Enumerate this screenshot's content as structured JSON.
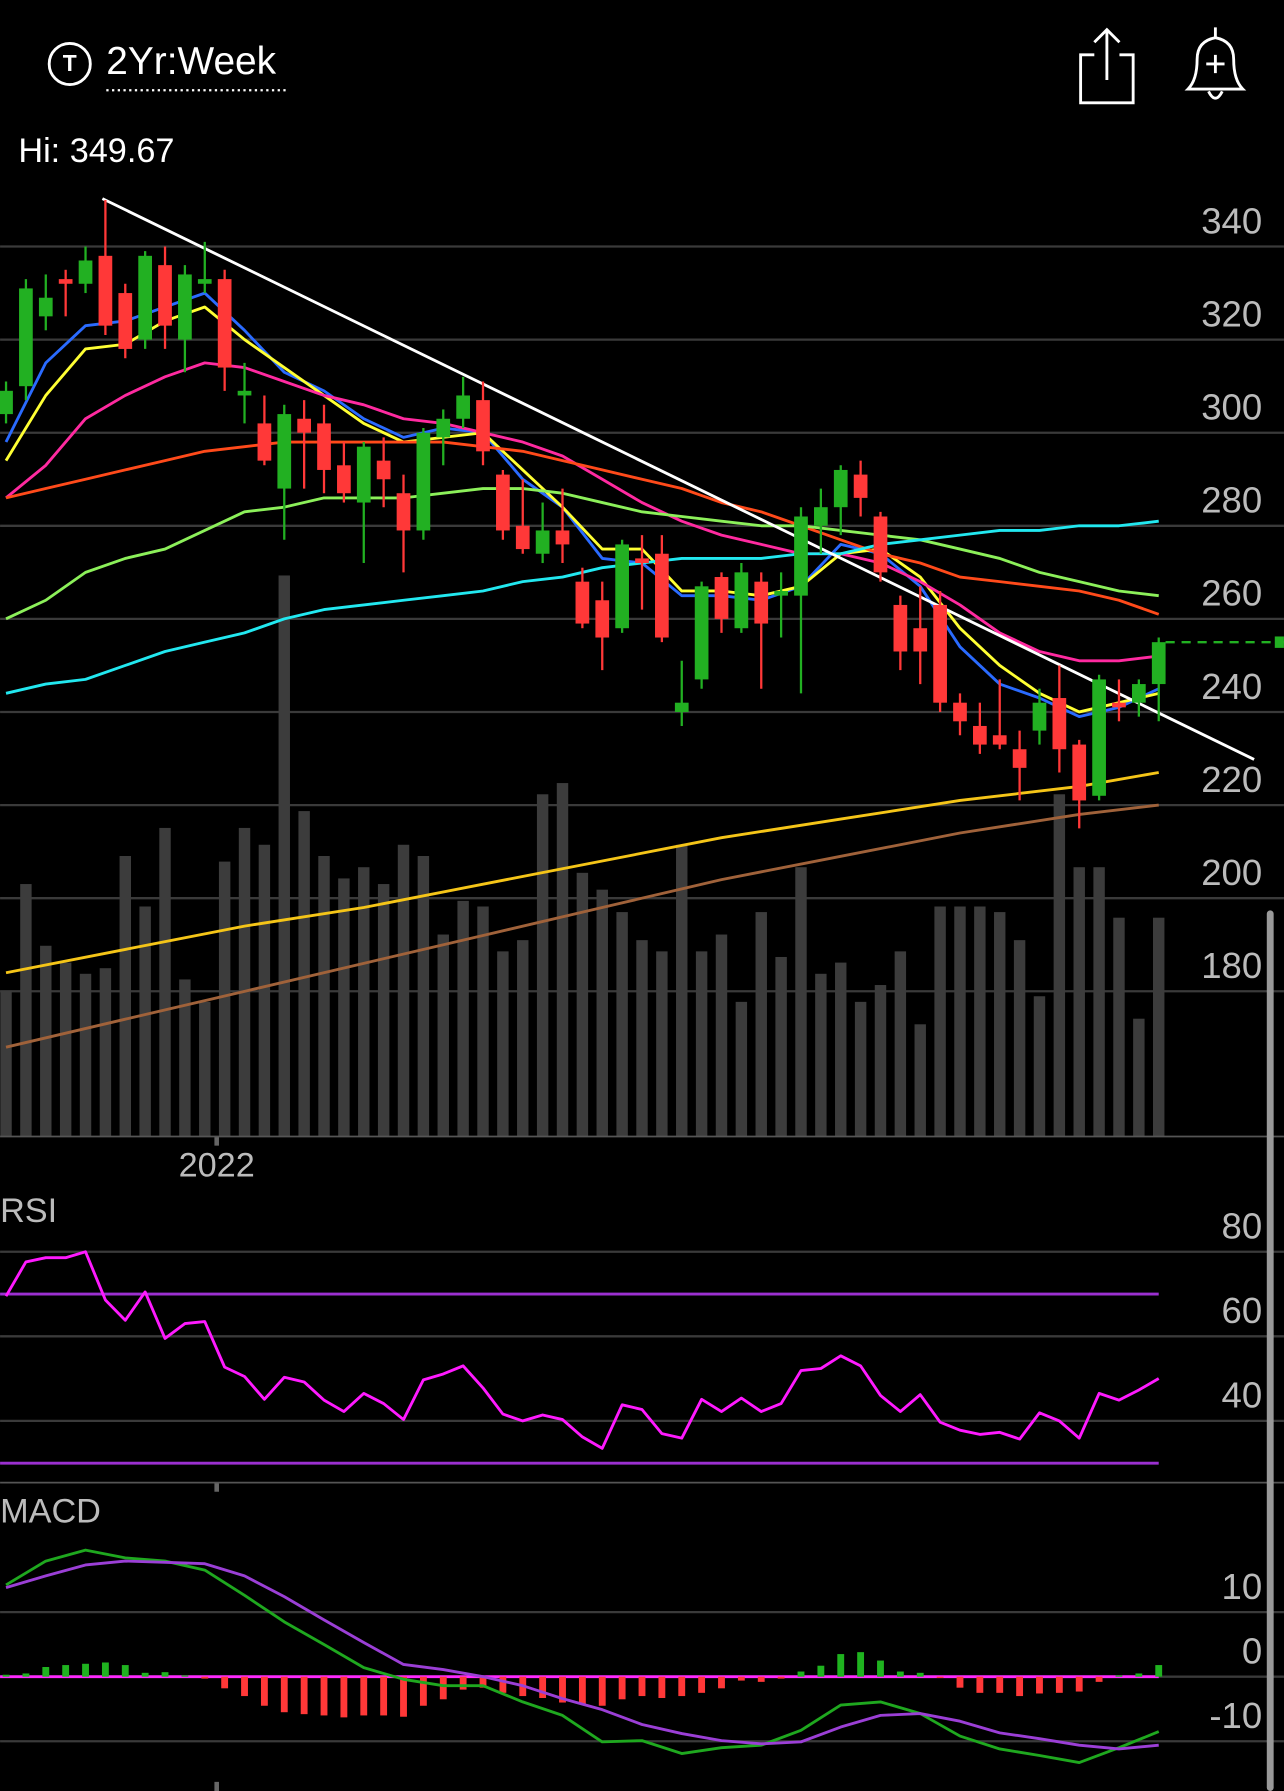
{
  "header": {
    "period": "2Yr:Week"
  },
  "chart_data": [
    {
      "type": "candlestick",
      "annotation": "Hi: 349.67",
      "xlim": [
        -0.3,
        64.3
      ],
      "xticks": [
        {
          "value": 10.6,
          "label": "2022"
        }
      ],
      "ylim": [
        148.8,
        353.7
      ],
      "yticks": [
        180,
        200,
        220,
        240,
        260,
        280,
        300,
        320,
        340
      ],
      "grid": true,
      "up_color": "#22b022",
      "down_color": "#ff3838",
      "open": [
        304,
        310,
        325,
        333,
        332,
        338,
        330,
        320,
        336,
        320,
        332,
        333,
        308,
        302,
        288,
        303,
        302,
        293,
        285,
        294,
        287,
        279,
        299,
        303,
        307,
        291,
        280,
        274,
        279,
        268,
        264,
        258,
        273,
        274,
        240,
        247,
        269,
        258,
        268,
        265,
        265,
        280,
        284,
        291,
        282,
        263,
        258,
        263,
        242,
        237,
        235,
        232,
        236,
        243,
        233,
        222,
        242,
        242,
        246
      ],
      "high": [
        311,
        333,
        334,
        335,
        340,
        350,
        332,
        339,
        340,
        336,
        341,
        335,
        315,
        308,
        306,
        307,
        306,
        298,
        298,
        299,
        291,
        301,
        305,
        312,
        311,
        292,
        290,
        285,
        288,
        271,
        268,
        277,
        278,
        278,
        251,
        268,
        270,
        272,
        270,
        270,
        284,
        288,
        293,
        294,
        283,
        265,
        267,
        266,
        244,
        242,
        247,
        236,
        245,
        250,
        234,
        248,
        247,
        247,
        256
      ],
      "low": [
        302,
        307,
        322,
        325,
        330,
        321,
        316,
        318,
        318,
        313,
        330,
        309,
        302,
        293,
        277,
        288,
        287,
        285,
        272,
        284,
        270,
        277,
        293,
        301,
        293,
        277,
        274,
        272,
        272,
        258,
        249,
        257,
        262,
        255,
        237,
        245,
        257,
        257,
        245,
        256,
        244,
        274,
        278,
        282,
        268,
        249,
        246,
        240,
        235,
        231,
        232,
        221,
        233,
        227,
        215,
        221,
        238,
        239,
        238
      ],
      "close": [
        309,
        331,
        329,
        332,
        337,
        323,
        318,
        338,
        323,
        334,
        333,
        314,
        309,
        294,
        304,
        300,
        292,
        287,
        297,
        290,
        279,
        300,
        303,
        308,
        296,
        279,
        275,
        279,
        276,
        259,
        256,
        276,
        272,
        256,
        242,
        267,
        260,
        270,
        259,
        266,
        282,
        284,
        292,
        286,
        270,
        253,
        253,
        242,
        238,
        233,
        233,
        228,
        242,
        232,
        221,
        247,
        241,
        246,
        255
      ],
      "volume": [
        26,
        45,
        34,
        31,
        29,
        30,
        50,
        41,
        55,
        28,
        24,
        49,
        55,
        52,
        100,
        58,
        50,
        46,
        48,
        45,
        52,
        50,
        36,
        42,
        41,
        33,
        35,
        61,
        63,
        47,
        44,
        40,
        35,
        33,
        52,
        33,
        36,
        24,
        40,
        32,
        48,
        29,
        31,
        24,
        27,
        33,
        20,
        41,
        41,
        41,
        40,
        35,
        25,
        61,
        48,
        48,
        39,
        21,
        39
      ],
      "volume_ylim": [
        0,
        170
      ],
      "volume_color": "#3c3c3c",
      "overlays": [
        {
          "color": "#2a6bff",
          "x": [
            0,
            2,
            4,
            6,
            8,
            10,
            12,
            14,
            16,
            18,
            20,
            22,
            24,
            26,
            28,
            30,
            32,
            34,
            36,
            38,
            40,
            42,
            44,
            46,
            48,
            50,
            52,
            54,
            56,
            58
          ],
          "values": [
            298,
            315,
            323,
            324,
            327,
            330,
            322,
            313,
            309,
            303,
            299,
            301,
            300,
            290,
            284,
            273,
            272,
            265,
            265,
            264,
            267,
            276,
            274,
            267,
            254,
            246,
            243,
            239,
            241,
            245
          ]
        },
        {
          "color": "#ffff33",
          "x": [
            0,
            2,
            4,
            6,
            8,
            10,
            12,
            14,
            16,
            18,
            20,
            22,
            24,
            26,
            28,
            30,
            32,
            34,
            36,
            38,
            40,
            42,
            44,
            46,
            48,
            50,
            52,
            54,
            56,
            58
          ],
          "values": [
            294,
            308,
            318,
            319,
            324,
            327,
            320,
            314,
            308,
            302,
            298,
            299,
            300,
            292,
            284,
            275,
            275,
            266,
            266,
            265,
            267,
            274,
            275,
            269,
            258,
            250,
            244,
            240,
            242,
            244
          ]
        },
        {
          "color": "#ff2aa0",
          "x": [
            0,
            2,
            4,
            6,
            8,
            10,
            12,
            14,
            16,
            18,
            20,
            22,
            24,
            26,
            28,
            30,
            32,
            34,
            36,
            38,
            40,
            42,
            44,
            46,
            48,
            50,
            52,
            54,
            56,
            58
          ],
          "values": [
            286,
            293,
            303,
            308,
            312,
            315,
            314,
            311,
            308,
            306,
            303,
            302,
            300,
            298,
            295,
            290,
            285,
            281,
            278,
            276,
            274,
            274,
            272,
            268,
            263,
            257,
            253,
            251,
            251,
            252
          ]
        },
        {
          "color": "#ff4a1a",
          "x": [
            0,
            2,
            4,
            6,
            8,
            10,
            12,
            14,
            16,
            18,
            20,
            22,
            24,
            26,
            28,
            30,
            32,
            34,
            36,
            38,
            40,
            42,
            44,
            46,
            48,
            50,
            52,
            54,
            56,
            58
          ],
          "values": [
            286,
            288,
            290,
            292,
            294,
            296,
            297,
            298,
            298,
            298,
            298,
            298,
            297,
            296,
            294,
            292,
            290,
            288,
            285,
            283,
            280,
            277,
            274,
            272,
            269,
            268,
            267,
            266,
            264,
            261
          ]
        },
        {
          "color": "#8cf05a",
          "x": [
            0,
            2,
            4,
            6,
            8,
            10,
            12,
            14,
            16,
            18,
            20,
            22,
            24,
            26,
            28,
            30,
            32,
            34,
            36,
            38,
            40,
            42,
            44,
            46,
            48,
            50,
            52,
            54,
            56,
            58
          ],
          "values": [
            260,
            264,
            270,
            273,
            275,
            279,
            283,
            284,
            286,
            286,
            286,
            287,
            288,
            288,
            287,
            285,
            283,
            282,
            281,
            280,
            280,
            279,
            278,
            277,
            275,
            273,
            270,
            268,
            266,
            265
          ]
        },
        {
          "color": "#22e8f0",
          "x": [
            0,
            2,
            4,
            6,
            8,
            10,
            12,
            14,
            16,
            18,
            20,
            22,
            24,
            26,
            28,
            30,
            32,
            34,
            36,
            38,
            40,
            42,
            44,
            46,
            48,
            50,
            52,
            54,
            56,
            58
          ],
          "values": [
            244,
            246,
            247,
            250,
            253,
            255,
            257,
            260,
            262,
            263,
            264,
            265,
            266,
            268,
            269,
            271,
            272,
            273,
            273,
            273,
            274,
            274,
            276,
            277,
            278,
            279,
            279,
            280,
            280,
            281
          ]
        },
        {
          "color": "#f5c518",
          "x": [
            0,
            6,
            12,
            18,
            24,
            30,
            36,
            42,
            48,
            54,
            58
          ],
          "values": [
            184,
            189,
            194,
            198,
            203,
            208,
            213,
            217,
            221,
            224,
            227
          ]
        },
        {
          "color": "#a0623a",
          "x": [
            0,
            6,
            12,
            18,
            24,
            30,
            36,
            42,
            48,
            54,
            58
          ],
          "values": [
            168,
            174,
            180,
            186,
            192,
            198,
            204,
            209,
            214,
            218,
            220
          ]
        },
        {
          "color": "#ffffff",
          "x": [
            4.85,
            62.8
          ],
          "values": [
            350.3,
            229.8
          ]
        }
      ]
    },
    {
      "type": "line",
      "title": "RSI",
      "ylim": [
        25.4,
        92.4
      ],
      "yticks": [
        40,
        60,
        80
      ],
      "grid": true,
      "levels": [
        30,
        70
      ],
      "level_color": "#9b30d0",
      "color": "#ff1aff",
      "values": [
        69.5,
        77.6,
        78.6,
        78.6,
        80,
        68.6,
        63.8,
        70.5,
        59.5,
        63,
        63.5,
        52.7,
        50.5,
        45.1,
        50.3,
        49.2,
        44.9,
        42.2,
        46.5,
        44.1,
        40.3,
        49.7,
        51.1,
        53,
        47.8,
        41.6,
        40,
        41.4,
        40.3,
        36.2,
        33.5,
        43.8,
        42.7,
        37,
        35.9,
        45.1,
        42.2,
        45.4,
        42.2,
        44.1,
        51.9,
        52.4,
        55.4,
        53,
        46,
        42.2,
        46.2,
        39.7,
        37.8,
        36.8,
        37.3,
        35.7,
        41.9,
        40,
        35.9,
        46.5,
        44.9,
        47.3,
        50
      ]
    },
    {
      "type": "macd",
      "title": "MACD",
      "ylim": [
        -17.7,
        29.7
      ],
      "yticks": [
        {
          "value": 10,
          "label": "10"
        },
        0,
        -10
      ],
      "grid": true,
      "zero_color": "#ff2aff",
      "x": [
        0,
        2,
        4,
        6,
        8,
        10,
        12,
        14,
        16,
        18,
        20,
        22,
        24,
        26,
        28,
        30,
        32,
        34,
        36,
        38,
        40,
        42,
        44,
        46,
        48,
        50,
        52,
        54,
        56,
        58
      ],
      "series": [
        {
          "color": "#1fa81f",
          "values": [
            14.2,
            17.9,
            19.6,
            18.4,
            17.9,
            16.5,
            12.6,
            8.5,
            5.0,
            1.4,
            -0.4,
            -1.4,
            -1.4,
            -3.9,
            -6.0,
            -10.1,
            -9.9,
            -11.9,
            -11.0,
            -10.6,
            -8.3,
            -4.4,
            -3.9,
            -5.7,
            -9.2,
            -11.2,
            -12.2,
            -13.3,
            -11.0,
            -8.5
          ]
        },
        {
          "color": "#9b3fd6",
          "values": [
            13.8,
            15.6,
            17.3,
            17.9,
            17.7,
            17.5,
            15.6,
            12.4,
            8.8,
            5.3,
            1.9,
            1.1,
            0,
            -1.4,
            -3.4,
            -5.1,
            -7.4,
            -8.8,
            -9.9,
            -10.4,
            -10.1,
            -7.8,
            -6.0,
            -5.7,
            -6.9,
            -8.7,
            -9.6,
            -10.6,
            -11.2,
            -10.6
          ]
        }
      ],
      "histogram": [
        0.3,
        0.5,
        1.5,
        1.8,
        2.0,
        2.2,
        1.8,
        0.6,
        0.7,
        0.2,
        -0.3,
        -1.8,
        -3.0,
        -4.5,
        -5.5,
        -5.8,
        -6.0,
        -6.3,
        -6.0,
        -6.0,
        -6.2,
        -4.5,
        -3.5,
        -2.0,
        -1.7,
        -2.5,
        -3.0,
        -3.3,
        -4.0,
        -4.3,
        -4.5,
        -3.5,
        -3.0,
        -3.3,
        -3.0,
        -2.5,
        -1.8,
        -0.6,
        -0.8,
        -0.3,
        0.8,
        1.7,
        3.5,
        3.8,
        2.5,
        0.8,
        0.6,
        -0.2,
        -1.7,
        -2.5,
        -2.5,
        -3.0,
        -2.6,
        -2.5,
        -2.3,
        -0.8,
        0.2,
        0.5,
        1.8
      ],
      "up_color": "#1fb31f",
      "down_color": "#ff3838"
    }
  ]
}
